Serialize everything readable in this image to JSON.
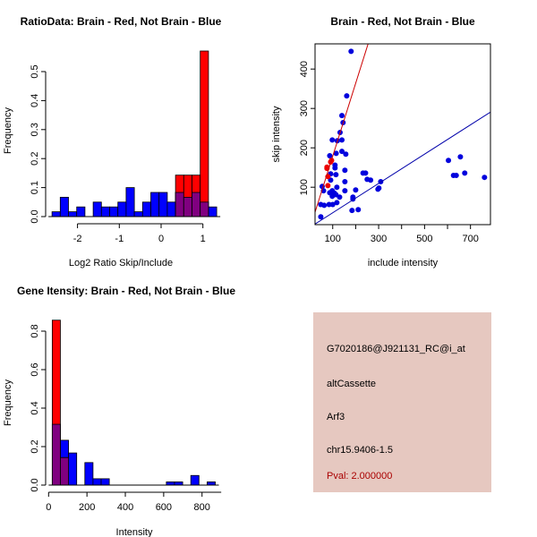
{
  "chart_data": [
    {
      "type": "bar",
      "title": "RatioData: Brain - Red, Not Brain - Blue",
      "xlabel": "Log2 Ratio Skip/Include",
      "ylabel": "Frequency",
      "xlim": [
        -2.7,
        1.5
      ],
      "ylim": [
        0,
        0.58
      ],
      "xticks": [
        "-2",
        "-1",
        "0",
        "1"
      ],
      "yticks": [
        "0.0",
        "0.1",
        "0.2",
        "0.3",
        "0.4",
        "0.5"
      ],
      "bin_start": -2.61,
      "bin_width": 0.197,
      "series": [
        {
          "name": "Not Brain",
          "color": "#0000ff",
          "start_bin": 0,
          "values": [
            0.0167,
            0.0667,
            0.0167,
            0.0333,
            0,
            0.05,
            0.0333,
            0.0333,
            0.05,
            0.1,
            0.0167,
            0.05,
            0.0833,
            0.0833,
            0.05,
            0.0833,
            0.0667,
            0.0833,
            0.05,
            0.0333
          ]
        },
        {
          "name": "Brain",
          "color": "#ff0000",
          "start_bin": 15,
          "values": [
            0.143,
            0.143,
            0.143,
            0.571
          ]
        }
      ],
      "overlap_color": "#800080"
    },
    {
      "type": "scatter",
      "title": "Brain - Red, Not Brain - Blue",
      "xlabel": "include intensity",
      "ylabel": "skip intensity",
      "xlim": [
        23,
        787
      ],
      "ylim": [
        5,
        464
      ],
      "xticks": [
        "100",
        "300",
        "500",
        "700"
      ],
      "xminor": [
        200,
        400,
        600
      ],
      "yticks": [
        "100",
        "200",
        "300",
        "400"
      ],
      "series": [
        {
          "name": "Not Brain",
          "color": "#0000dd",
          "points": [
            [
              180,
              445
            ],
            [
              161,
              332
            ],
            [
              140,
              282
            ],
            [
              145,
              264
            ],
            [
              132,
              239
            ],
            [
              98,
              220
            ],
            [
              120,
              218
            ],
            [
              140,
              220
            ],
            [
              115,
              186
            ],
            [
              140,
              191
            ],
            [
              157,
              184
            ],
            [
              87,
              180
            ],
            [
              110,
              156
            ],
            [
              110,
              149
            ],
            [
              114,
              132
            ],
            [
              91,
              134
            ],
            [
              153,
              143
            ],
            [
              91,
              118
            ],
            [
              153,
              114
            ],
            [
              54,
              102
            ],
            [
              60,
              91
            ],
            [
              118,
              100
            ],
            [
              153,
              91
            ],
            [
              200,
              93
            ],
            [
              87,
              86
            ],
            [
              98,
              91
            ],
            [
              107,
              85
            ],
            [
              98,
              77
            ],
            [
              114,
              81
            ],
            [
              130,
              75
            ],
            [
              84,
              56
            ],
            [
              100,
              56
            ],
            [
              63,
              54
            ],
            [
              48,
              56
            ],
            [
              118,
              61
            ],
            [
              188,
              75
            ],
            [
              188,
              70
            ],
            [
              184,
              41
            ],
            [
              211,
              43
            ],
            [
              48,
              25
            ],
            [
              232,
              136
            ],
            [
              243,
              136
            ],
            [
              250,
              120
            ],
            [
              265,
              118
            ],
            [
              297,
              95
            ],
            [
              301,
              98
            ],
            [
              309,
              114
            ],
            [
              604,
              168
            ],
            [
              656,
              177
            ],
            [
              626,
              130
            ],
            [
              638,
              130
            ],
            [
              675,
              136
            ],
            [
              761,
              125
            ]
          ]
        },
        {
          "name": "Brain",
          "color": "#ee0000",
          "points": [
            [
              75,
              151
            ],
            [
              75,
              148
            ],
            [
              79,
              127
            ],
            [
              79,
              104
            ],
            [
              91,
              164
            ],
            [
              95,
              168
            ]
          ]
        }
      ],
      "lines": [
        {
          "name": "Brain fit",
          "color": "#cc0000",
          "slope": 1.85,
          "intercept": -6
        },
        {
          "name": "Not Brain fit",
          "color": "#0000aa",
          "slope": 0.372,
          "intercept": -2
        }
      ]
    },
    {
      "type": "bar",
      "title": "Gene Itensity: Brain - Red, Not Brain - Blue",
      "xlabel": "Intensity",
      "ylabel": "Frequency",
      "xlim": [
        -10,
        910
      ],
      "ylim": [
        0,
        0.87
      ],
      "xticks": [
        "0",
        "200",
        "400",
        "600",
        "800"
      ],
      "yticks": [
        "0.0",
        "0.2",
        "0.4",
        "0.6",
        "0.8"
      ],
      "bin_start": 19,
      "bin_width": 42.5,
      "series": [
        {
          "name": "Not Brain",
          "color": "#0000ff",
          "start_bin": 0,
          "values": [
            0.316,
            0.233,
            0.167,
            0,
            0.117,
            0.033,
            0.033,
            0,
            0,
            0,
            0,
            0,
            0,
            0,
            0.0167,
            0.0167,
            0,
            0.05,
            0,
            0.0167
          ]
        },
        {
          "name": "Brain",
          "color": "#ff0000",
          "start_bin": 0,
          "values": [
            0.857,
            0.143
          ]
        }
      ],
      "overlap_color": "#800080"
    }
  ],
  "info_panel": {
    "probe_id": "G7020186@J921131_RC@i_at",
    "event_type": "altCassette",
    "gene": "Arf3",
    "location": "chr15.9406-1.5",
    "pval": "Pval: 2.000000",
    "pval_color": "#aa0000"
  }
}
